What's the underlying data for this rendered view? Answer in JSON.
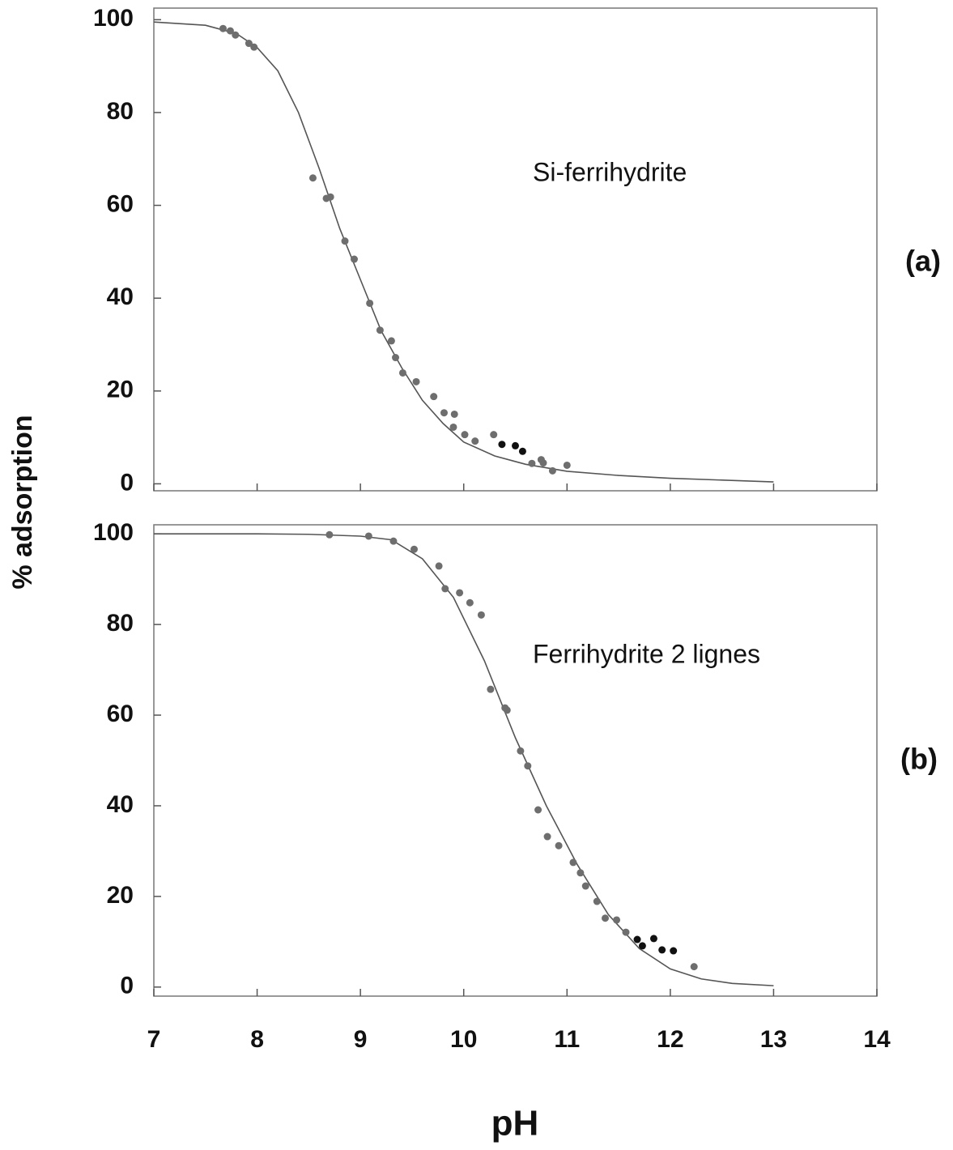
{
  "chart_data": [
    {
      "type": "scatter",
      "annotation": "Si-ferrihydrite",
      "panel_label": "(a)",
      "ylabel": "% adsorption",
      "xlim": [
        7,
        14
      ],
      "xticks": [
        7,
        8,
        9,
        10,
        11,
        12,
        13,
        14
      ],
      "xtick_labels": false,
      "ylim": [
        -1.5,
        102.5
      ],
      "yticks": [
        0,
        20,
        40,
        60,
        80,
        100
      ],
      "series": [
        {
          "color": "#6e6e6e",
          "x": [
            7.67,
            7.74,
            7.79,
            7.92,
            7.97,
            8.54,
            8.67,
            8.71,
            8.85,
            8.94,
            9.09,
            9.19,
            9.3,
            9.34,
            9.41,
            9.54,
            9.71,
            9.81,
            9.91,
            9.9,
            10.01,
            10.11,
            10.29,
            10.66,
            10.75,
            10.77,
            10.86,
            11.0
          ],
          "values": [
            98.1,
            97.6,
            96.7,
            94.9,
            94.1,
            65.9,
            61.5,
            61.8,
            52.3,
            48.4,
            38.9,
            33.1,
            30.8,
            27.2,
            23.9,
            22,
            18.8,
            15.3,
            15,
            12.2,
            10.6,
            9.2,
            10.6,
            4.4,
            5.2,
            4.5,
            2.8,
            4.0
          ]
        },
        {
          "color": "#111111",
          "x": [
            10.37,
            10.5,
            10.57
          ],
          "values": [
            8.5,
            8.2,
            7.0
          ]
        }
      ],
      "curve": {
        "color": "#555555",
        "x": [
          7,
          7.5,
          7.8,
          8,
          8.2,
          8.4,
          8.6,
          8.8,
          9,
          9.2,
          9.4,
          9.6,
          9.8,
          10,
          10.3,
          10.6,
          11,
          11.5,
          12,
          13
        ],
        "values": [
          99.5,
          98.8,
          97,
          94,
          89,
          80,
          68,
          55,
          44,
          33,
          25,
          18,
          13,
          9,
          6,
          4.2,
          2.7,
          1.8,
          1.2,
          0.4
        ]
      }
    },
    {
      "type": "scatter",
      "annotation": "Ferrihydrite 2 lignes",
      "panel_label": "(b)",
      "xlabel": "pH",
      "xlim": [
        7,
        14
      ],
      "xticks": [
        7,
        8,
        9,
        10,
        11,
        12,
        13,
        14
      ],
      "xtick_labels": true,
      "ylim": [
        -2,
        102
      ],
      "yticks": [
        0,
        20,
        40,
        60,
        80,
        100
      ],
      "series": [
        {
          "color": "#6e6e6e",
          "x": [
            8.7,
            9.08,
            9.32,
            9.52,
            9.76,
            9.82,
            9.96,
            10.06,
            10.17,
            10.26,
            10.4,
            10.42,
            10.55,
            10.62,
            10.72,
            10.81,
            10.92,
            11.06,
            11.13,
            11.18,
            11.29,
            11.37,
            11.48,
            11.57,
            12.23
          ],
          "values": [
            99.8,
            99.5,
            98.4,
            96.6,
            92.9,
            87.9,
            87,
            84.8,
            82.1,
            65.7,
            61.6,
            61.1,
            52.1,
            48.8,
            39.1,
            33.2,
            31.2,
            27.5,
            25.2,
            22.3,
            18.9,
            15.2,
            14.8,
            12.1,
            4.5
          ]
        },
        {
          "color": "#111111",
          "x": [
            11.68,
            11.73,
            11.84,
            11.92,
            12.03
          ],
          "values": [
            10.5,
            9.1,
            10.7,
            8.2,
            8.0
          ]
        }
      ],
      "curve": {
        "color": "#555555",
        "x": [
          7,
          8,
          8.5,
          9,
          9.3,
          9.6,
          9.9,
          10.2,
          10.5,
          10.8,
          11.1,
          11.4,
          11.7,
          12,
          12.3,
          12.6,
          13
        ],
        "values": [
          100,
          100,
          99.9,
          99.5,
          98.7,
          94.5,
          86,
          72,
          55,
          40,
          27,
          16,
          8.5,
          4,
          1.8,
          0.8,
          0.3
        ]
      }
    }
  ]
}
